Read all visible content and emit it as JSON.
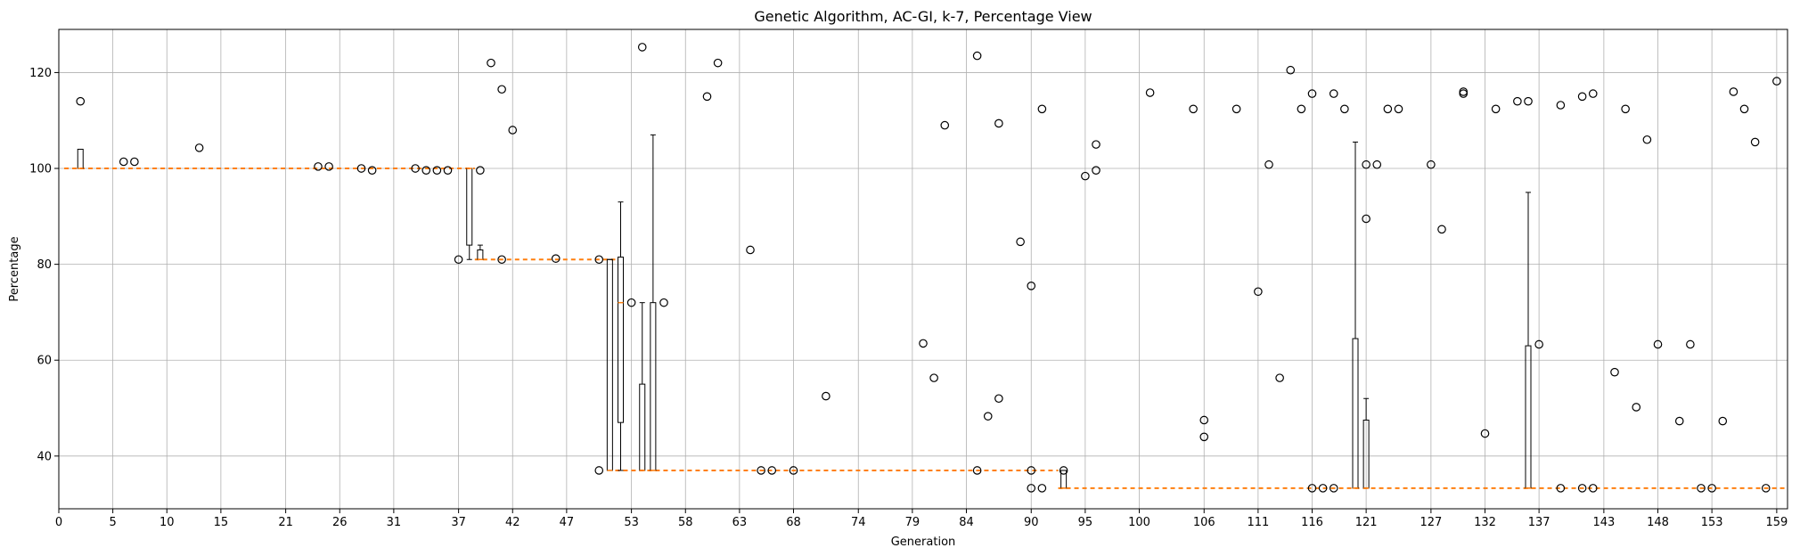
{
  "chart_data": {
    "type": "box",
    "title": "Genetic Algorithm, AC-GI, k-7, Percentage View",
    "xlabel": "Generation",
    "ylabel": "Percentage",
    "xlim": [
      0,
      160
    ],
    "ylim": [
      29,
      129
    ],
    "grid": true,
    "x_ticks": [
      0,
      5,
      10,
      15,
      21,
      26,
      31,
      37,
      42,
      47,
      53,
      58,
      63,
      68,
      74,
      79,
      84,
      90,
      95,
      100,
      106,
      111,
      116,
      121,
      127,
      132,
      137,
      143,
      148,
      153,
      159
    ],
    "y_ticks": [
      40,
      60,
      80,
      100,
      120
    ],
    "colors": {
      "median": "#ff7f0e",
      "box": "#000000",
      "grid": "#b0b0b0"
    },
    "median_segments": [
      {
        "x_start": 0.5,
        "x_end": 38.5,
        "value": 100
      },
      {
        "x_start": 38.5,
        "x_end": 51.5,
        "value": 81
      },
      {
        "x_start": 51.5,
        "x_end": 92.5,
        "value": 37
      },
      {
        "x_start": 92.5,
        "x_end": 160,
        "value": 33.3
      }
    ],
    "boxes": [
      {
        "gen": 2,
        "q1": 100,
        "median": 100,
        "q3": 104,
        "wlo": 100,
        "whi": 104
      },
      {
        "gen": 38,
        "q1": 84,
        "median": 100,
        "q3": 100,
        "wlo": 81,
        "whi": 100
      },
      {
        "gen": 39,
        "q1": 81,
        "median": 81,
        "q3": 83,
        "wlo": 81,
        "whi": 84
      },
      {
        "gen": 51,
        "q1": 37,
        "median": 37,
        "q3": 81,
        "wlo": 37,
        "whi": 81
      },
      {
        "gen": 52,
        "q1": 47,
        "median": 72,
        "q3": 81.5,
        "wlo": 37,
        "whi": 93
      },
      {
        "gen": 54,
        "q1": 37,
        "median": 37,
        "q3": 55,
        "wlo": 37,
        "whi": 72
      },
      {
        "gen": 55,
        "q1": 37,
        "median": 37,
        "q3": 72,
        "wlo": 37,
        "whi": 107
      },
      {
        "gen": 93,
        "q1": 33.3,
        "median": 33.3,
        "q3": 37,
        "wlo": 33.3,
        "whi": 37
      },
      {
        "gen": 120,
        "q1": 33.3,
        "median": 33.3,
        "q3": 64.5,
        "wlo": 33.3,
        "whi": 105.5
      },
      {
        "gen": 121,
        "q1": 33.3,
        "median": 33.3,
        "q3": 47.5,
        "wlo": 33.3,
        "whi": 52
      },
      {
        "gen": 136,
        "q1": 33.3,
        "median": 33.3,
        "q3": 63,
        "wlo": 33.3,
        "whi": 95
      }
    ],
    "outliers": [
      [
        2,
        114
      ],
      [
        6,
        101.4
      ],
      [
        7,
        101.4
      ],
      [
        13,
        104.3
      ],
      [
        24,
        100.4
      ],
      [
        25,
        100.4
      ],
      [
        28,
        100
      ],
      [
        29,
        99.6
      ],
      [
        33,
        100
      ],
      [
        34,
        99.6
      ],
      [
        35,
        99.6
      ],
      [
        36,
        99.6
      ],
      [
        37,
        81
      ],
      [
        39,
        99.6
      ],
      [
        40,
        122
      ],
      [
        41,
        116.5
      ],
      [
        41,
        81
      ],
      [
        42,
        108
      ],
      [
        46,
        81.2
      ],
      [
        50,
        81
      ],
      [
        50,
        37
      ],
      [
        53,
        72
      ],
      [
        54,
        125.3
      ],
      [
        56,
        72
      ],
      [
        60,
        115
      ],
      [
        61,
        122
      ],
      [
        64,
        83
      ],
      [
        65,
        37
      ],
      [
        66,
        37
      ],
      [
        68,
        37
      ],
      [
        71,
        52.5
      ],
      [
        80,
        63.5
      ],
      [
        81,
        56.3
      ],
      [
        82,
        109
      ],
      [
        85,
        123.5
      ],
      [
        85,
        37
      ],
      [
        86,
        48.3
      ],
      [
        87,
        109.4
      ],
      [
        87,
        52
      ],
      [
        89,
        84.7
      ],
      [
        90,
        75.5
      ],
      [
        90,
        37
      ],
      [
        90,
        33.3
      ],
      [
        91,
        112.4
      ],
      [
        91,
        33.3
      ],
      [
        93,
        37
      ],
      [
        95,
        98.4
      ],
      [
        96,
        105
      ],
      [
        96,
        99.6
      ],
      [
        101,
        115.8
      ],
      [
        105,
        112.4
      ],
      [
        106,
        47.5
      ],
      [
        106,
        44
      ],
      [
        109,
        112.4
      ],
      [
        111,
        74.3
      ],
      [
        112,
        100.8
      ],
      [
        113,
        56.3
      ],
      [
        114,
        120.5
      ],
      [
        115,
        112.4
      ],
      [
        116,
        115.6
      ],
      [
        116,
        33.3
      ],
      [
        117,
        33.3
      ],
      [
        118,
        115.6
      ],
      [
        118,
        33.3
      ],
      [
        119,
        112.4
      ],
      [
        121,
        100.8
      ],
      [
        121,
        89.5
      ],
      [
        122,
        100.8
      ],
      [
        123,
        112.4
      ],
      [
        124,
        112.4
      ],
      [
        127,
        100.8
      ],
      [
        128,
        87.3
      ],
      [
        130,
        116
      ],
      [
        130,
        115.6
      ],
      [
        132,
        44.7
      ],
      [
        133,
        112.4
      ],
      [
        135,
        114
      ],
      [
        136,
        114
      ],
      [
        137,
        63.3
      ],
      [
        139,
        113.2
      ],
      [
        139,
        33.3
      ],
      [
        141,
        115
      ],
      [
        141,
        33.3
      ],
      [
        142,
        115.6
      ],
      [
        142,
        33.3
      ],
      [
        144,
        57.5
      ],
      [
        145,
        112.4
      ],
      [
        146,
        50.2
      ],
      [
        147,
        106
      ],
      [
        148,
        63.3
      ],
      [
        150,
        47.3
      ],
      [
        151,
        63.3
      ],
      [
        152,
        33.3
      ],
      [
        153,
        33.3
      ],
      [
        154,
        47.3
      ],
      [
        155,
        116
      ],
      [
        156,
        112.4
      ],
      [
        157,
        105.5
      ],
      [
        158,
        33.3
      ],
      [
        159,
        118.2
      ]
    ]
  }
}
